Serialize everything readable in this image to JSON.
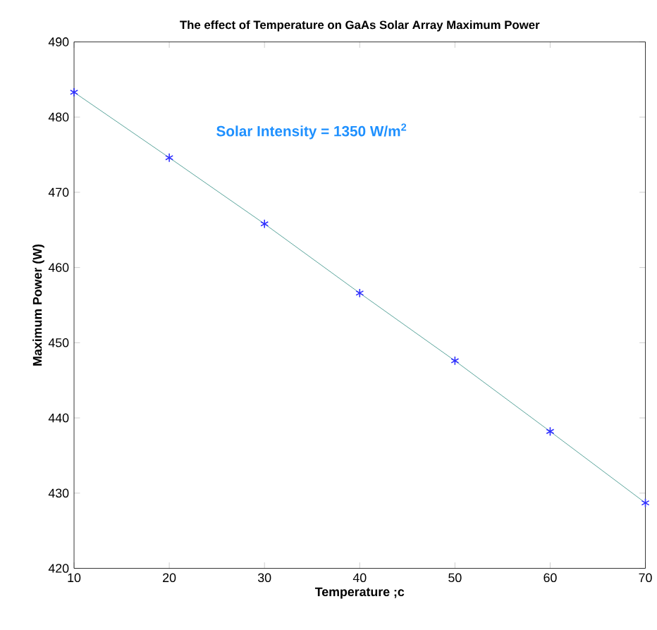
{
  "chart_data": {
    "type": "line",
    "title": "The effect of Temperature on GaAs Solar Array Maximum Power",
    "xlabel": "Temperature ;c",
    "ylabel": "Maximum Power (W)",
    "annotations": [
      "Solar Intensity = 1350 W/m$^{2}$"
    ],
    "x": [
      10,
      20,
      30,
      40,
      50,
      60,
      70
    ],
    "series": [
      {
        "color": "#2e8b80",
        "marker": "none",
        "values": [
          483.3,
          474.6,
          465.8,
          456.6,
          447.6,
          438.2,
          428.7
        ]
      },
      {
        "type": "scatter",
        "color": "#3030ff",
        "marker": "cross",
        "values": [
          483.3,
          474.6,
          465.8,
          456.6,
          447.6,
          438.2,
          428.7
        ]
      }
    ],
    "xlim": [
      10,
      70
    ],
    "ylim": [
      420,
      490
    ],
    "xticks": [
      10,
      20,
      30,
      40,
      50,
      60,
      70
    ],
    "yticks": [
      420,
      430,
      440,
      450,
      460,
      470,
      480,
      490
    ]
  }
}
